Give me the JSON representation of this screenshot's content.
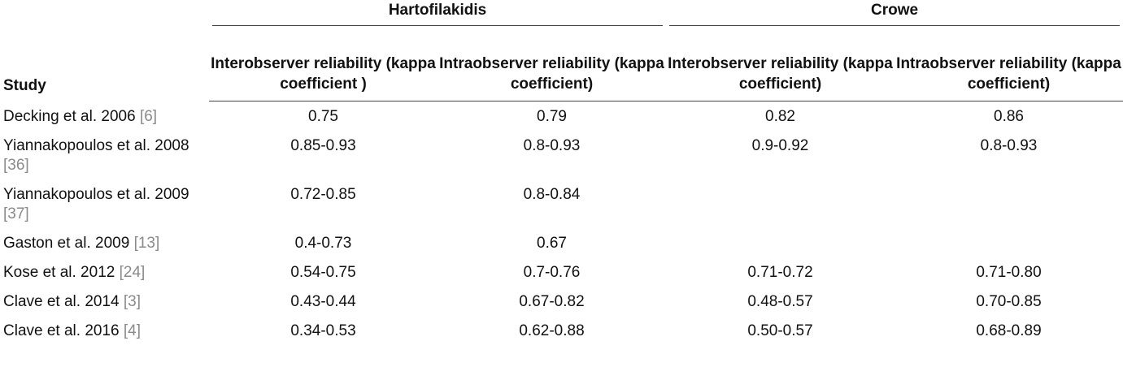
{
  "table": {
    "study_header": "Study",
    "groups": [
      {
        "title": "Hartofilakidis",
        "columns": [
          "Interobserver reliability (kappa coefficient )",
          "Intraobserver reliability (kappa coefficient)"
        ]
      },
      {
        "title": "Crowe",
        "columns": [
          "Interobserver reliability (kappa coefficient)",
          "Intraobserver reliability (kappa coefficient)"
        ]
      }
    ],
    "rows": [
      {
        "study": "Decking et al. 2006",
        "ref": "[6]",
        "values": [
          "0.75",
          "0.79",
          "0.82",
          "0.86"
        ]
      },
      {
        "study": "Yiannakopoulos et al. 2008",
        "ref": "[36]",
        "values": [
          "0.85-0.93",
          "0.8-0.93",
          "0.9-0.92",
          "0.8-0.93"
        ]
      },
      {
        "study": "Yiannakopoulos et al. 2009",
        "ref": "[37]",
        "values": [
          "0.72-0.85",
          "0.8-0.84",
          null,
          null
        ]
      },
      {
        "study": "Gaston et al. 2009",
        "ref": "[13]",
        "values": [
          "0.4-0.73",
          "0.67",
          null,
          null
        ]
      },
      {
        "study": "Kose et al. 2012",
        "ref": "[24]",
        "values": [
          "0.54-0.75",
          "0.7-0.76",
          "0.71-0.72",
          "0.71-0.80"
        ]
      },
      {
        "study": "Clave et al. 2014",
        "ref": "[3]",
        "values": [
          "0.43-0.44",
          "0.67-0.82",
          "0.48-0.57",
          "0.70-0.85"
        ]
      },
      {
        "study": "Clave et al. 2016",
        "ref": "[4]",
        "values": [
          "0.34-0.53",
          "0.62-0.88",
          "0.50-0.57",
          "0.68-0.89"
        ]
      }
    ]
  }
}
